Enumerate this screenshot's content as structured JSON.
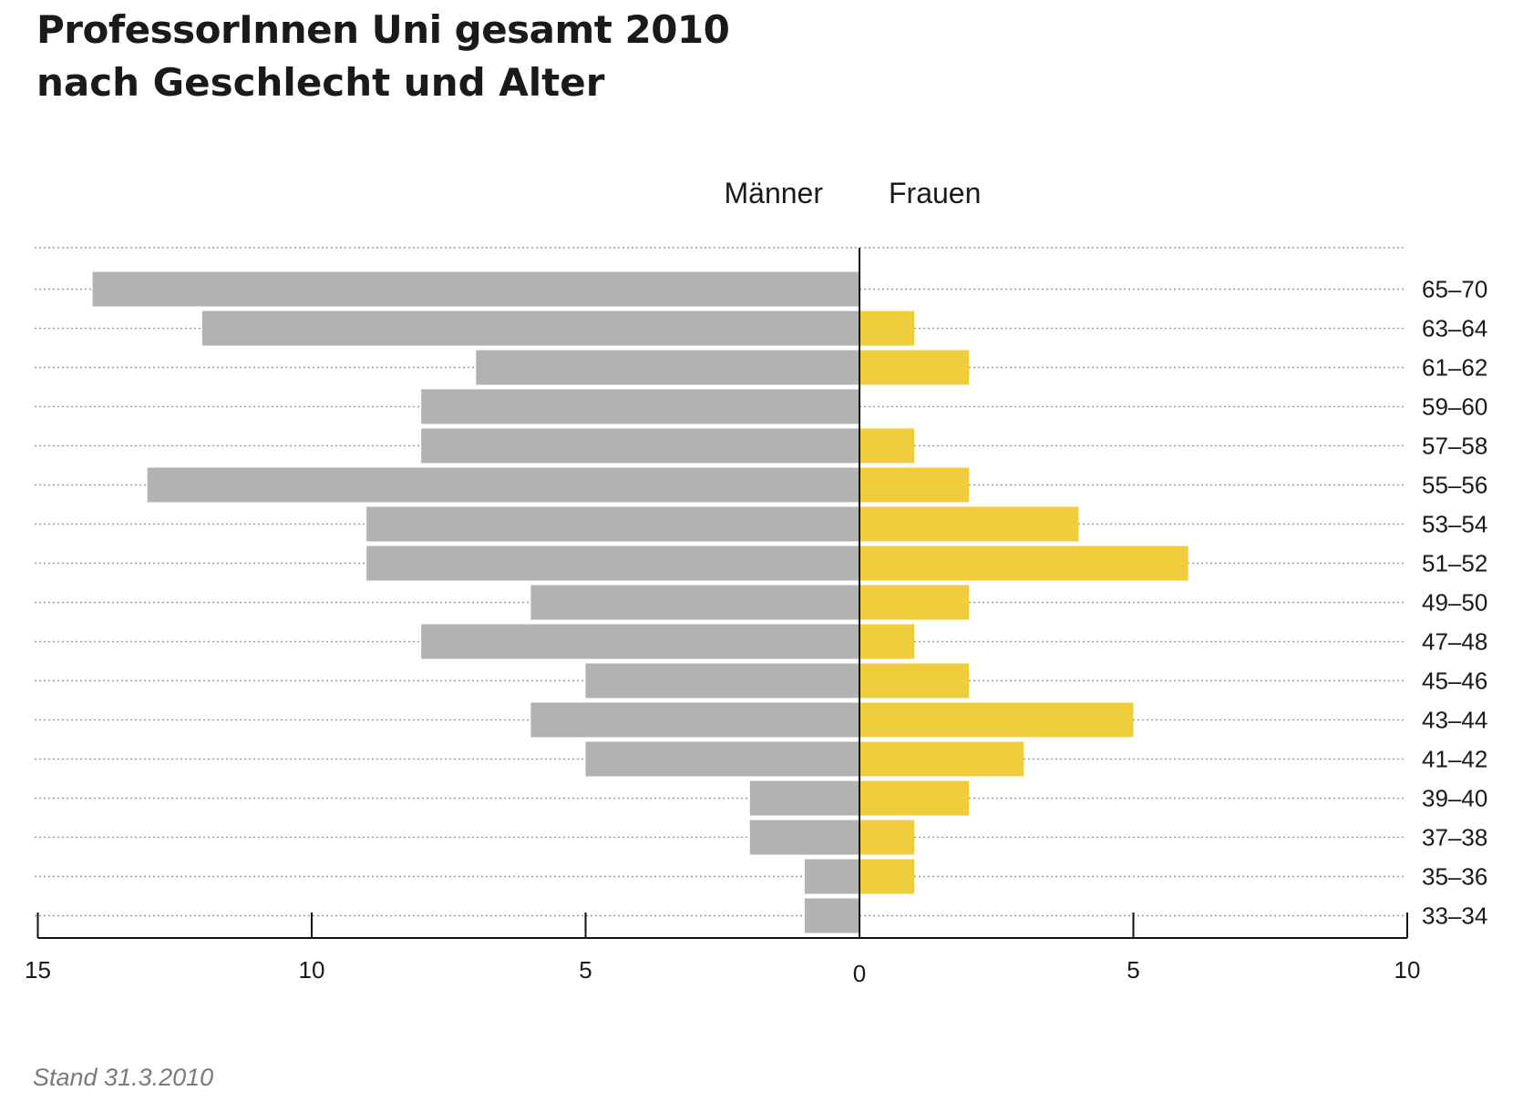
{
  "header": {
    "title": "ProfessorInnen Uni gesamt 2010",
    "subtitle": "nach Geschlecht und Alter"
  },
  "footnote": "Stand 31.3.2010",
  "colors": {
    "men": "#b2b2b1",
    "women": "#f0cd3c",
    "text": "#1a1a1a",
    "grid": "#9a9a9a"
  },
  "chart_data": {
    "type": "bar",
    "orientation": "horizontal-population-pyramid",
    "title": "ProfessorInnen Uni gesamt 2010",
    "subtitle": "nach Geschlecht und Alter",
    "categories": [
      "65–70",
      "63–64",
      "61–62",
      "59–60",
      "57–58",
      "55–56",
      "53–54",
      "51–52",
      "49–50",
      "47–48",
      "45–46",
      "43–44",
      "41–42",
      "39–40",
      "37–38",
      "35–36",
      "33–34"
    ],
    "series": [
      {
        "name": "Männer",
        "side": "left",
        "values": [
          14,
          12,
          7,
          8,
          8,
          13,
          9,
          9,
          6,
          8,
          5,
          6,
          5,
          2,
          2,
          1,
          1
        ]
      },
      {
        "name": "Frauen",
        "side": "right",
        "values": [
          0,
          1,
          2,
          0,
          1,
          2,
          4,
          6,
          2,
          1,
          2,
          5,
          3,
          2,
          1,
          1,
          0
        ]
      }
    ],
    "xlim_left": [
      0,
      15
    ],
    "xlim_right": [
      0,
      10
    ],
    "x_ticks_left": [
      "15",
      "10",
      "5"
    ],
    "x_ticks_left_values": [
      15,
      10,
      5
    ],
    "x_ticks_right": [
      "5",
      "10"
    ],
    "x_ticks_right_values": [
      5,
      10
    ],
    "zero_label": "0",
    "grid": "dotted horizontal",
    "legend": "top-center"
  }
}
